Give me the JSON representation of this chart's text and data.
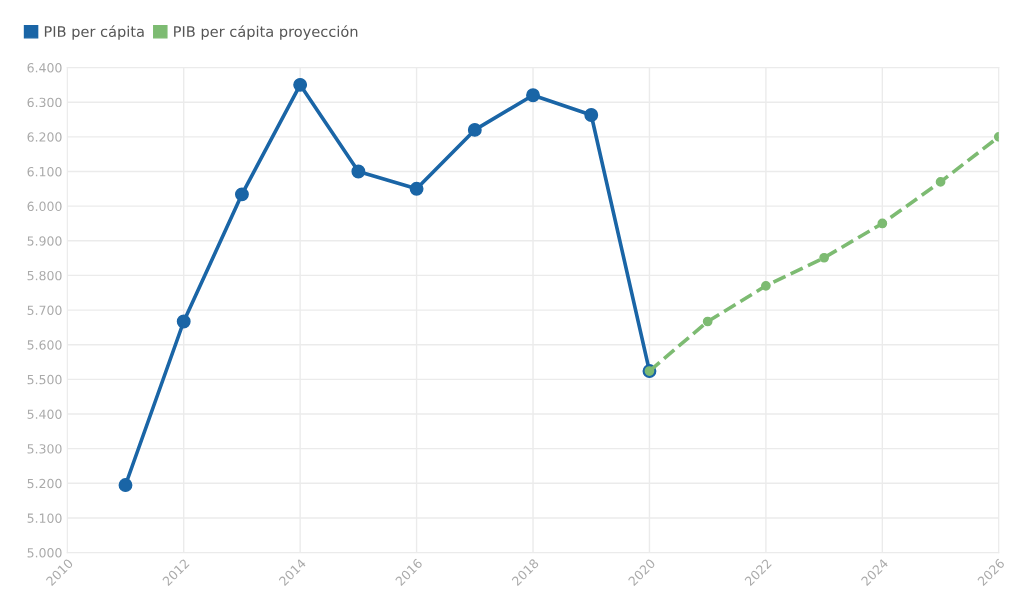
{
  "chart_data": {
    "type": "line",
    "series": [
      {
        "name": "PIB per cápita",
        "color": "#1a65a6",
        "line_style": "solid",
        "x": [
          2011,
          2012,
          2013,
          2014,
          2015,
          2016,
          2017,
          2018,
          2019,
          2020
        ],
        "values": [
          5195,
          5667,
          6034,
          6350,
          6100,
          6050,
          6220,
          6320,
          6263,
          5524
        ]
      },
      {
        "name": "PIB per cápita proyección",
        "color": "#7dbb72",
        "line_style": "dashed",
        "x": [
          2020,
          2021,
          2022,
          2023,
          2024,
          2025,
          2026
        ],
        "values": [
          5524,
          5667,
          5770,
          5851,
          5950,
          6070,
          6200
        ]
      }
    ],
    "xlim": [
      2010,
      2026
    ],
    "xticks": [
      2010,
      2012,
      2014,
      2016,
      2018,
      2020,
      2022,
      2024,
      2026
    ],
    "ylim": [
      5000,
      6400
    ],
    "yticks": [
      {
        "value": 5000,
        "label": "5.000"
      },
      {
        "value": 5100,
        "label": "5.100"
      },
      {
        "value": 5200,
        "label": "5.200"
      },
      {
        "value": 5300,
        "label": "5.300"
      },
      {
        "value": 5400,
        "label": "5.400"
      },
      {
        "value": 5500,
        "label": "5.500"
      },
      {
        "value": 5600,
        "label": "5.600"
      },
      {
        "value": 5700,
        "label": "5.700"
      },
      {
        "value": 5800,
        "label": "5.800"
      },
      {
        "value": 5900,
        "label": "5.900"
      },
      {
        "value": 6000,
        "label": "6.000"
      },
      {
        "value": 6100,
        "label": "6.100"
      },
      {
        "value": 6200,
        "label": "6.200"
      },
      {
        "value": 6300,
        "label": "6.300"
      },
      {
        "value": 6400,
        "label": "6.400"
      }
    ],
    "grid": true,
    "legend": "top left",
    "marker": "circle"
  }
}
